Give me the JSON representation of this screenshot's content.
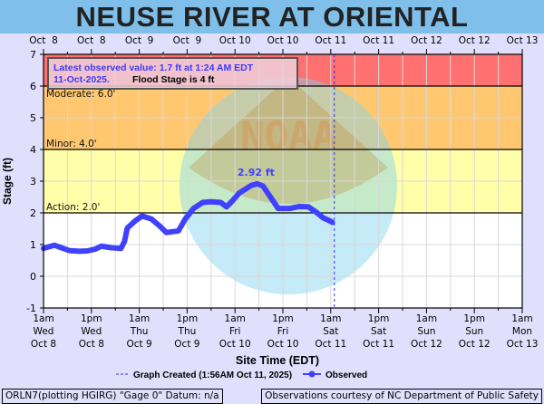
{
  "title": "NEUSE RIVER AT ORIENTAL",
  "info_box": {
    "latest_line1": "Latest observed value: 1.7 ft at 1:24 AM EDT",
    "latest_line2": "11-Oct-2025.",
    "flood_stage": "Flood Stage is 4 ft"
  },
  "footer": {
    "left": "ORLN7(plotting HGIRG) \"Gage 0\" Datum: n/a",
    "right": "Observations courtesy of NC Department of Public Safety"
  },
  "watermark": "NOAA",
  "colors": {
    "background": "#e0e0fd",
    "title_bar": "#80bfea",
    "observed": "#4040ff",
    "moderate": "#ff7070",
    "minor": "#ffc870",
    "action": "#ffffaa",
    "normal": "#ffffff"
  },
  "chart_data": {
    "type": "line",
    "xlabel": "Site Time (EDT)",
    "ylabel": "Stage (ft)",
    "ylim": [
      -1,
      7
    ],
    "yticks": [
      -1,
      0,
      1,
      2,
      3,
      4,
      5,
      6,
      7
    ],
    "xlim_hours_from_start": [
      0,
      120
    ],
    "top_tick_labels": [
      "Oct  8",
      "Oct  8",
      "Oct  9",
      "Oct  9",
      "Oct 10",
      "Oct 10",
      "Oct 11",
      "Oct 11",
      "Oct 12",
      "Oct 12",
      "Oct 13"
    ],
    "bottom_tick_labels": [
      [
        "1am",
        "Wed",
        "Oct 8"
      ],
      [
        "1pm",
        "Wed",
        "Oct 8"
      ],
      [
        "1am",
        "Thu",
        "Oct 9"
      ],
      [
        "1pm",
        "Thu",
        "Oct 9"
      ],
      [
        "1am",
        "Fri",
        "Oct 10"
      ],
      [
        "1pm",
        "Fri",
        "Oct 10"
      ],
      [
        "1am",
        "Sat",
        "Oct 11"
      ],
      [
        "1pm",
        "Sat",
        "Oct 11"
      ],
      [
        "1am",
        "Sun",
        "Oct 12"
      ],
      [
        "1pm",
        "Sun",
        "Oct 12"
      ],
      [
        "1am",
        "Mon",
        "Oct 13"
      ]
    ],
    "grid": true,
    "flood_categories": [
      {
        "label": "Action: 2.0'",
        "value": 2,
        "top": 4,
        "color": "#ffffaa"
      },
      {
        "label": "Minor: 4.0'",
        "value": 4,
        "top": 6,
        "color": "#ffc870"
      },
      {
        "label": "Moderate: 6.0'",
        "value": 6,
        "top": 7,
        "color": "#ff7070"
      }
    ],
    "graph_created": {
      "label": "Graph Created (1:56AM Oct 11, 2025)",
      "hour": 72.9
    },
    "peak_label": "2.92 ft",
    "peak": {
      "hour": 53.5,
      "value": 2.92
    },
    "series": [
      {
        "name": "Observed",
        "x_hours_from_oct8_1am": [
          0,
          0.5,
          2.7,
          4.5,
          6.5,
          9,
          11,
          13,
          14.5,
          17,
          19.4,
          20.3,
          21,
          23,
          24.7,
          27,
          29,
          30.8,
          33.8,
          35.5,
          37.6,
          39.9,
          42,
          44.4,
          45.9,
          47.5,
          49,
          52,
          53.5,
          55,
          56.5,
          58.8,
          61.8,
          64,
          66.4,
          68.6,
          70,
          71.7,
          72.4
        ],
        "values": [
          0.88,
          0.9,
          0.98,
          0.9,
          0.81,
          0.79,
          0.8,
          0.86,
          0.95,
          0.9,
          0.88,
          1.1,
          1.52,
          1.75,
          1.9,
          1.81,
          1.6,
          1.38,
          1.43,
          1.8,
          2.14,
          2.33,
          2.35,
          2.33,
          2.19,
          2.4,
          2.62,
          2.86,
          2.92,
          2.85,
          2.57,
          2.14,
          2.14,
          2.2,
          2.19,
          2.0,
          1.85,
          1.75,
          1.7
        ]
      }
    ],
    "legend": [
      "Graph Created (1:56AM Oct 11, 2025)",
      "Observed"
    ],
    "legend_placement": "bottom"
  }
}
